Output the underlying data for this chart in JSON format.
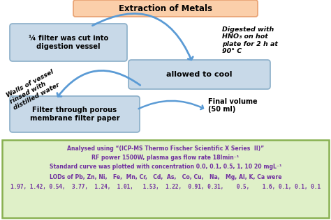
{
  "title": "Extraction of Metals",
  "title_box_facecolor": "#FBCFAA",
  "title_box_edgecolor": "#E8A070",
  "box_facecolor": "#C8D9E8",
  "box_edgecolor": "#8AAEC8",
  "bg_color": "#FFFFFF",
  "box1_text": "¼ filter was cut into\ndigestion vessel",
  "box2_text": "allowed to cool",
  "box3_text": "Filter through porous\nmembrane filter paper",
  "annot_digested": "Digested with\nHNO₃ on hot\nplate for 2 h at\n90° C",
  "annot_walls": "Walls of vessel\nrinsed with\ndistilled water",
  "annot_final": "Final volume\n(50 ml)",
  "arrow_color": "#5B9BD5",
  "bottom_bg": "#DFF0C8",
  "bottom_border": "#88B050",
  "bottom_text_color": "#7030A0",
  "bottom_line1": "Analysed using “(ICP-MS Thermo Fischer Scientific X Series  II)”",
  "bottom_line2": "RF power 1500W, plasma gas flow rate 18lmin⁻¹",
  "bottom_line3": "Standard curve was plotted with concentration 0.0, 0.1, 0.5, 1, 10 20 mgL⁻¹",
  "bottom_line4": "LODs of Pb, Zn, Ni,   Fe,  Mn, Cr,   Cd,  As,   Co, Cu,   Na,   Mg, Al, K, Ca were",
  "bottom_line5": "1.97, 1.42, 0.54,  3.77,  1.24,  1.01,   1.53,  1.22,  0.91, 0.31,    0.5,    1.6, 0.1, 0.1, 0.1"
}
